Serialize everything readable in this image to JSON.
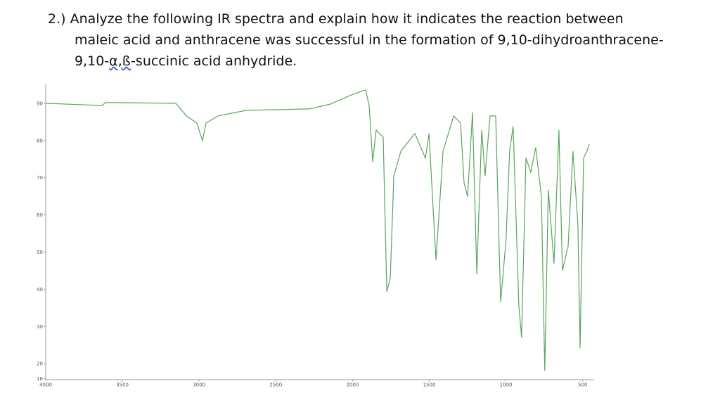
{
  "question": {
    "lines": [
      "2.) Analyze the following IR spectra and explain how it indicates the reaction between",
      "maleic acid and anthracene was successful in the formation of 9,10-dihydroanthracene-",
      "9,10-",
      "α,ß",
      "-succinic acid anhydride."
    ]
  },
  "chart_data": {
    "type": "line",
    "x": [
      4000,
      3633,
      3610,
      3152,
      3083,
      3015,
      2978,
      2955,
      2877,
      2694,
      2281,
      2144,
      2006,
      1915,
      1892,
      1869,
      1846,
      1800,
      1777,
      1754,
      1731,
      1685,
      1594,
      1525,
      1502,
      1456,
      1410,
      1341,
      1296,
      1273,
      1250,
      1218,
      1190,
      1158,
      1136,
      1104,
      1067,
      1035,
      999,
      976,
      953,
      916,
      898,
      870,
      838,
      806,
      769,
      747,
      724,
      687,
      655,
      632,
      595,
      563,
      531,
      517,
      494,
      472,
      458
    ],
    "series": [
      {
        "color": "#5aa55a",
        "values": [
          90,
          89.4,
          90.2,
          90,
          86.6,
          84.7,
          80,
          84.7,
          86.6,
          88.1,
          88.5,
          89.8,
          92.3,
          93.6,
          89.4,
          74.3,
          82.8,
          80.9,
          39.3,
          43.1,
          70.5,
          77.1,
          81.9,
          75.3,
          81.9,
          47.8,
          77.1,
          86.6,
          84.7,
          68.6,
          64.9,
          87.5,
          44.1,
          82.8,
          70.5,
          86.6,
          86.6,
          36.5,
          53.5,
          77.1,
          83.8,
          35.6,
          27,
          75.3,
          71.5,
          78.1,
          64.9,
          18,
          66.8,
          46.9,
          82.8,
          45,
          51.6,
          77.1,
          57.3,
          24.2,
          75.3,
          77.1,
          79
        ]
      }
    ],
    "xlim": [
      4000,
      450
    ],
    "ylim": [
      16,
      95
    ],
    "xticks": [
      4000,
      3500,
      3000,
      2500,
      2000,
      1500,
      1000,
      500
    ],
    "yticks": [
      16,
      20,
      30,
      40,
      50,
      60,
      70,
      80,
      90
    ],
    "grid": false
  }
}
